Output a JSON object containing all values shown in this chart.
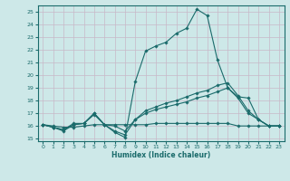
{
  "xlabel": "Humidex (Indice chaleur)",
  "xlim": [
    -0.5,
    23.5
  ],
  "ylim": [
    14.8,
    25.5
  ],
  "yticks": [
    15,
    16,
    17,
    18,
    19,
    20,
    21,
    22,
    23,
    24,
    25
  ],
  "xticks": [
    0,
    1,
    2,
    3,
    4,
    5,
    6,
    7,
    8,
    9,
    10,
    11,
    12,
    13,
    14,
    15,
    16,
    17,
    18,
    19,
    20,
    21,
    22,
    23
  ],
  "bg_color": "#cde8e8",
  "line_color": "#1a6b6b",
  "grid_color": "#b0d4d4",
  "series": [
    [
      16.1,
      15.9,
      15.6,
      16.1,
      16.2,
      16.9,
      16.1,
      15.5,
      15.1,
      19.5,
      21.9,
      22.3,
      22.6,
      23.3,
      23.7,
      25.2,
      24.7,
      21.2,
      19.0,
      18.2,
      17.0,
      16.5,
      16.0,
      16.0
    ],
    [
      16.1,
      15.9,
      15.7,
      16.1,
      16.2,
      17.0,
      16.1,
      16.0,
      15.6,
      16.5,
      17.0,
      17.3,
      17.5,
      17.7,
      17.9,
      18.2,
      18.4,
      18.7,
      19.0,
      18.3,
      18.2,
      16.5,
      16.0,
      16.0
    ],
    [
      16.1,
      16.0,
      15.9,
      15.9,
      16.0,
      16.1,
      16.1,
      16.1,
      16.1,
      16.1,
      16.1,
      16.2,
      16.2,
      16.2,
      16.2,
      16.2,
      16.2,
      16.2,
      16.2,
      16.0,
      16.0,
      16.0,
      16.0,
      16.0
    ],
    [
      16.1,
      15.9,
      15.7,
      16.2,
      16.2,
      17.0,
      16.1,
      15.6,
      15.3,
      16.5,
      17.2,
      17.5,
      17.8,
      18.0,
      18.3,
      18.6,
      18.8,
      19.2,
      19.4,
      18.4,
      17.2,
      16.5,
      16.0,
      16.0
    ]
  ]
}
